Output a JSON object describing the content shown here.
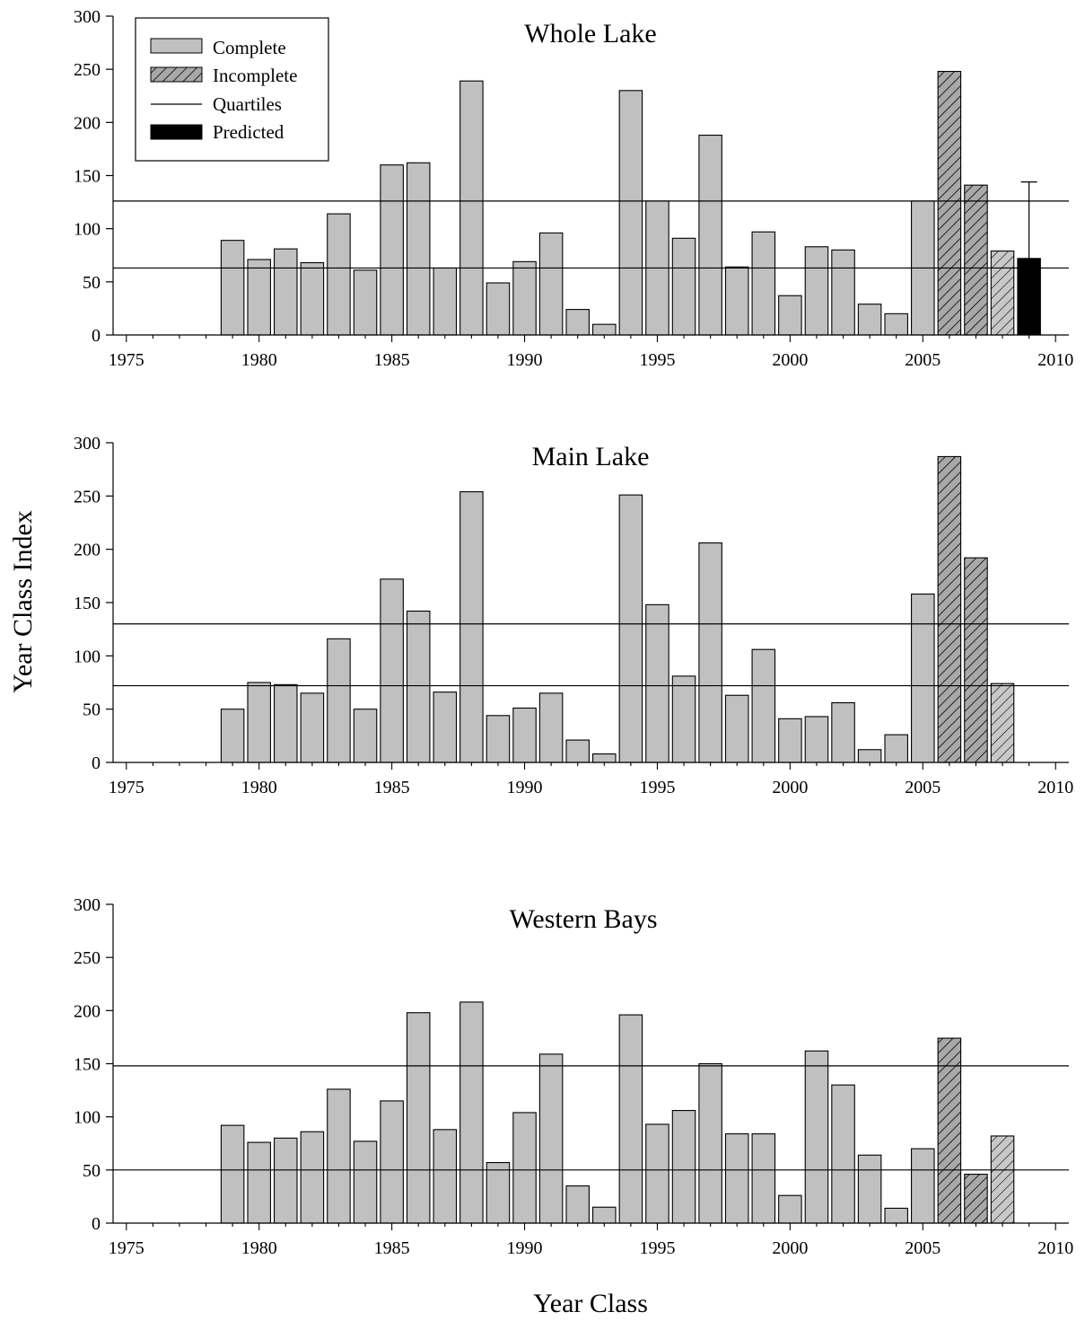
{
  "figure": {
    "ylabel": "Year Class Index",
    "xlabel": "Year Class"
  },
  "legend": {
    "placement": "top-left",
    "items": [
      {
        "key": "complete",
        "label": "Complete",
        "style": "solid-gray"
      },
      {
        "key": "incomplete",
        "label": "Incomplete",
        "style": "hatched-gray"
      },
      {
        "key": "quartiles",
        "label": "Quartiles",
        "style": "line"
      },
      {
        "key": "predicted",
        "label": "Predicted",
        "style": "solid-black"
      }
    ]
  },
  "colors": {
    "complete": "#c0c0c0",
    "incomplete": "#a8a8a8",
    "incomplete_light": "#c8c8c8",
    "predicted": "#000000",
    "stroke": "#000000"
  },
  "chart_data": [
    {
      "type": "bar",
      "title": "Whole Lake",
      "xlabel": "",
      "ylabel": "",
      "xlim": [
        1975,
        2010
      ],
      "ylim": [
        0,
        300
      ],
      "x_ticks": [
        1975,
        1980,
        1985,
        1990,
        1995,
        2000,
        2005,
        2010
      ],
      "y_ticks": [
        0,
        50,
        100,
        150,
        200,
        250,
        300
      ],
      "grid": false,
      "legend": true,
      "series": [
        {
          "name": "Complete",
          "points": [
            [
              1979,
              89
            ],
            [
              1980,
              71
            ],
            [
              1981,
              81
            ],
            [
              1982,
              68
            ],
            [
              1983,
              114
            ],
            [
              1984,
              61
            ],
            [
              1985,
              160
            ],
            [
              1986,
              162
            ],
            [
              1987,
              63
            ],
            [
              1988,
              239
            ],
            [
              1989,
              49
            ],
            [
              1990,
              69
            ],
            [
              1991,
              96
            ],
            [
              1992,
              24
            ],
            [
              1993,
              10
            ],
            [
              1994,
              230
            ],
            [
              1995,
              126
            ],
            [
              1996,
              91
            ],
            [
              1997,
              188
            ],
            [
              1998,
              64
            ],
            [
              1999,
              97
            ],
            [
              2000,
              37
            ],
            [
              2001,
              83
            ],
            [
              2002,
              80
            ],
            [
              2003,
              29
            ],
            [
              2004,
              20
            ],
            [
              2005,
              126
            ]
          ]
        },
        {
          "name": "Incomplete",
          "points": [
            [
              2006,
              248
            ],
            [
              2007,
              141
            ],
            [
              2008,
              79
            ]
          ]
        },
        {
          "name": "Predicted",
          "points": [
            [
              2009,
              72
            ]
          ],
          "error_upper": 144
        }
      ],
      "quartiles": [
        63,
        126
      ]
    },
    {
      "type": "bar",
      "title": "Main Lake",
      "xlabel": "",
      "ylabel": "",
      "xlim": [
        1975,
        2010
      ],
      "ylim": [
        0,
        300
      ],
      "x_ticks": [
        1975,
        1980,
        1985,
        1990,
        1995,
        2000,
        2005,
        2010
      ],
      "y_ticks": [
        0,
        50,
        100,
        150,
        200,
        250,
        300
      ],
      "grid": false,
      "legend": false,
      "series": [
        {
          "name": "Complete",
          "points": [
            [
              1979,
              50
            ],
            [
              1980,
              75
            ],
            [
              1981,
              73
            ],
            [
              1982,
              65
            ],
            [
              1983,
              116
            ],
            [
              1984,
              50
            ],
            [
              1985,
              172
            ],
            [
              1986,
              142
            ],
            [
              1987,
              66
            ],
            [
              1988,
              254
            ],
            [
              1989,
              44
            ],
            [
              1990,
              51
            ],
            [
              1991,
              65
            ],
            [
              1992,
              21
            ],
            [
              1993,
              8
            ],
            [
              1994,
              251
            ],
            [
              1995,
              148
            ],
            [
              1996,
              81
            ],
            [
              1997,
              206
            ],
            [
              1998,
              63
            ],
            [
              1999,
              106
            ],
            [
              2000,
              41
            ],
            [
              2001,
              43
            ],
            [
              2002,
              56
            ],
            [
              2003,
              12
            ],
            [
              2004,
              26
            ],
            [
              2005,
              158
            ]
          ]
        },
        {
          "name": "Incomplete",
          "points": [
            [
              2006,
              287
            ],
            [
              2007,
              192
            ],
            [
              2008,
              74
            ]
          ]
        }
      ],
      "quartiles": [
        72,
        130
      ]
    },
    {
      "type": "bar",
      "title": "Western Bays",
      "xlabel": "",
      "ylabel": "",
      "xlim": [
        1975,
        2010
      ],
      "ylim": [
        0,
        300
      ],
      "x_ticks": [
        1975,
        1980,
        1985,
        1990,
        1995,
        2000,
        2005,
        2010
      ],
      "y_ticks": [
        0,
        50,
        100,
        150,
        200,
        250,
        300
      ],
      "grid": false,
      "legend": false,
      "series": [
        {
          "name": "Complete",
          "points": [
            [
              1979,
              92
            ],
            [
              1980,
              76
            ],
            [
              1981,
              80
            ],
            [
              1982,
              86
            ],
            [
              1983,
              126
            ],
            [
              1984,
              77
            ],
            [
              1985,
              115
            ],
            [
              1986,
              198
            ],
            [
              1987,
              88
            ],
            [
              1988,
              208
            ],
            [
              1989,
              57
            ],
            [
              1990,
              104
            ],
            [
              1991,
              159
            ],
            [
              1992,
              35
            ],
            [
              1993,
              15
            ],
            [
              1994,
              196
            ],
            [
              1995,
              93
            ],
            [
              1996,
              106
            ],
            [
              1997,
              150
            ],
            [
              1998,
              84
            ],
            [
              1999,
              84
            ],
            [
              2000,
              26
            ],
            [
              2001,
              162
            ],
            [
              2002,
              130
            ],
            [
              2003,
              64
            ],
            [
              2004,
              14
            ],
            [
              2005,
              70
            ]
          ]
        },
        {
          "name": "Incomplete",
          "points": [
            [
              2006,
              174
            ],
            [
              2007,
              46
            ],
            [
              2008,
              82
            ]
          ]
        }
      ],
      "quartiles": [
        50,
        148
      ]
    }
  ]
}
